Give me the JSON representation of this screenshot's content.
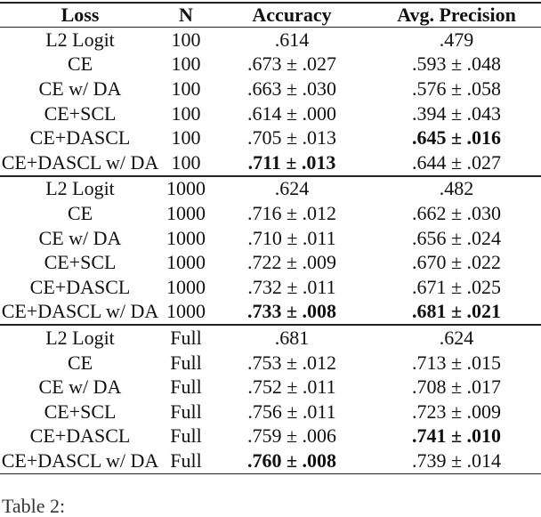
{
  "table": {
    "headers": [
      "Loss",
      "N",
      "Accuracy",
      "Avg. Precision"
    ],
    "sections": [
      {
        "rows": [
          {
            "loss": "L2 Logit",
            "n": "100",
            "acc": ".614",
            "ap": ".479",
            "acc_bold": false,
            "ap_bold": false
          },
          {
            "loss": "CE",
            "n": "100",
            "acc": ".673 ± .027",
            "ap": ".593 ± .048",
            "acc_bold": false,
            "ap_bold": false
          },
          {
            "loss": "CE w/ DA",
            "n": "100",
            "acc": ".663 ± .030",
            "ap": ".576 ± .058",
            "acc_bold": false,
            "ap_bold": false
          },
          {
            "loss": "CE+SCL",
            "n": "100",
            "acc": ".614 ± .000",
            "ap": ".394 ± .043",
            "acc_bold": false,
            "ap_bold": false
          },
          {
            "loss": "CE+DASCL",
            "n": "100",
            "acc": ".705 ± .013",
            "ap": ".645 ± .016",
            "acc_bold": false,
            "ap_bold": true
          },
          {
            "loss": "CE+DASCL w/ DA",
            "n": "100",
            "acc": ".711 ± .013",
            "ap": ".644 ± .027",
            "acc_bold": true,
            "ap_bold": false
          }
        ]
      },
      {
        "rows": [
          {
            "loss": "L2 Logit",
            "n": "1000",
            "acc": ".624",
            "ap": ".482",
            "acc_bold": false,
            "ap_bold": false
          },
          {
            "loss": "CE",
            "n": "1000",
            "acc": ".716 ± .012",
            "ap": ".662 ± .030",
            "acc_bold": false,
            "ap_bold": false
          },
          {
            "loss": "CE w/ DA",
            "n": "1000",
            "acc": ".710 ± .011",
            "ap": ".656 ± .024",
            "acc_bold": false,
            "ap_bold": false
          },
          {
            "loss": "CE+SCL",
            "n": "1000",
            "acc": ".722 ± .009",
            "ap": ".670 ± .022",
            "acc_bold": false,
            "ap_bold": false
          },
          {
            "loss": "CE+DASCL",
            "n": "1000",
            "acc": ".732 ± .011",
            "ap": ".671 ± .025",
            "acc_bold": false,
            "ap_bold": false
          },
          {
            "loss": "CE+DASCL w/ DA",
            "n": "1000",
            "acc": ".733 ± .008",
            "ap": ".681 ± .021",
            "acc_bold": true,
            "ap_bold": true
          }
        ]
      },
      {
        "rows": [
          {
            "loss": "L2 Logit",
            "n": "Full",
            "acc": ".681",
            "ap": ".624",
            "acc_bold": false,
            "ap_bold": false
          },
          {
            "loss": "CE",
            "n": "Full",
            "acc": ".753 ± .012",
            "ap": ".713 ± .015",
            "acc_bold": false,
            "ap_bold": false
          },
          {
            "loss": "CE w/ DA",
            "n": "Full",
            "acc": ".752 ± .011",
            "ap": ".708 ± .017",
            "acc_bold": false,
            "ap_bold": false
          },
          {
            "loss": "CE+SCL",
            "n": "Full",
            "acc": ".756 ± .011",
            "ap": ".723 ± .009",
            "acc_bold": false,
            "ap_bold": false
          },
          {
            "loss": "CE+DASCL",
            "n": "Full",
            "acc": ".759 ± .006",
            "ap": ".741 ± .010",
            "acc_bold": false,
            "ap_bold": true
          },
          {
            "loss": "CE+DASCL w/ DA",
            "n": "Full",
            "acc": ".760 ± .008",
            "ap": ".739 ± .014",
            "acc_bold": true,
            "ap_bold": false
          }
        ]
      }
    ]
  },
  "caption": "Table 2:"
}
